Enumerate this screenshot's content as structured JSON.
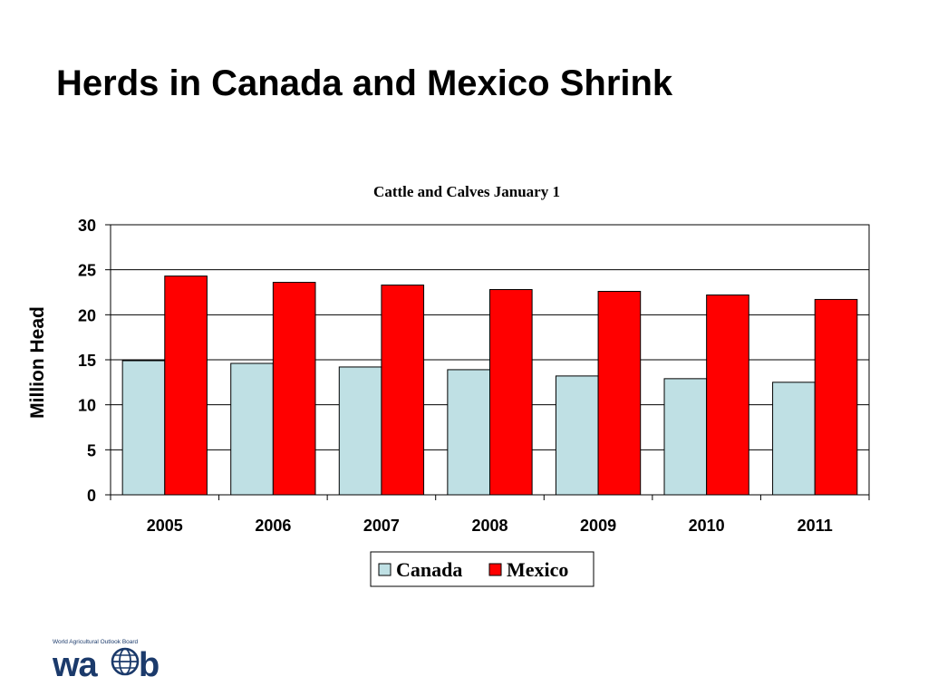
{
  "slide": {
    "title": "Herds in Canada and Mexico Shrink"
  },
  "logo": {
    "tagline": "World Agricultural Outlook Board",
    "wordmark": "waob",
    "color": "#1b3a6b"
  },
  "chart_data": {
    "type": "bar",
    "title": "Cattle and Calves January 1",
    "xlabel": "",
    "ylabel": "Million Head",
    "categories": [
      "2005",
      "2006",
      "2007",
      "2008",
      "2009",
      "2010",
      "2011"
    ],
    "series": [
      {
        "name": "Canada",
        "color": "#bfe0e4",
        "values": [
          14.9,
          14.6,
          14.2,
          13.9,
          13.2,
          12.9,
          12.5
        ]
      },
      {
        "name": "Mexico",
        "color": "#ff0000",
        "values": [
          24.3,
          23.6,
          23.3,
          22.8,
          22.6,
          22.2,
          21.7
        ]
      }
    ],
    "ylim": [
      0,
      30
    ],
    "yticks": [
      0,
      5,
      10,
      15,
      20,
      25,
      30
    ],
    "grid": true,
    "legend": "bottom-center"
  }
}
